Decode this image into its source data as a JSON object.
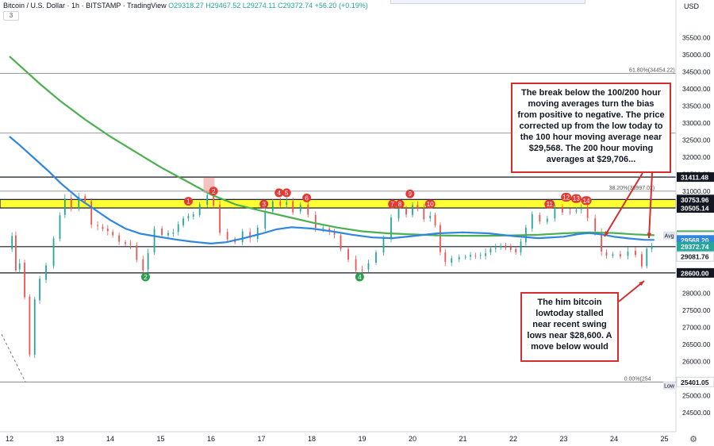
{
  "header": {
    "symbol": "Bitcoin / U.S. Dollar",
    "interval": "1h",
    "exchange": "BITSTAMP",
    "source": "TradingView",
    "ohlc": "O29318.27 H29467.52 L29274.11 C29372.74 +56.20 (+0.19%)",
    "studies_count": "3"
  },
  "currency": "USD",
  "notes": {
    "note1": "The break below the 100/200 hour moving averages turn the bias from positive to negative. The price corrected up from the low today to the 100 hour moving average near $29,568. The 200 hour moving averages at $29,706...",
    "note2": "The him bitcoin lowtoday stalled near recent swing lows near $28,600. A move below would"
  },
  "colors": {
    "candle_up": "#26a69a",
    "candle_down": "#ef5350",
    "ma100": "#2e86de",
    "ma200": "#4caf50",
    "zone": "#ffff33",
    "marker_red": "#e53935",
    "marker_green": "#2e9e4f",
    "line": "#131722"
  },
  "chart_data": {
    "type": "candlestick",
    "ylim": [
      24500,
      36000
    ],
    "xlim": [
      0,
      13.9
    ],
    "x_ticks": [
      {
        "x": 0,
        "label": "12"
      },
      {
        "x": 1,
        "label": "13"
      },
      {
        "x": 2,
        "label": "14"
      },
      {
        "x": 3,
        "label": "15"
      },
      {
        "x": 4,
        "label": "16"
      },
      {
        "x": 5,
        "label": "17"
      },
      {
        "x": 6,
        "label": "18"
      },
      {
        "x": 7,
        "label": "19"
      },
      {
        "x": 8,
        "label": "20"
      },
      {
        "x": 9,
        "label": "21"
      },
      {
        "x": 10,
        "label": "22"
      },
      {
        "x": 11,
        "label": "23"
      },
      {
        "x": 12,
        "label": "24"
      },
      {
        "x": 13,
        "label": "25"
      }
    ],
    "y_ticks": [
      {
        "v": 35500,
        "label": "35500.00"
      },
      {
        "v": 35000,
        "label": "35000.00"
      },
      {
        "v": 34500,
        "label": "34500.00"
      },
      {
        "v": 34000,
        "label": "34000.00"
      },
      {
        "v": 33500,
        "label": "33500.00"
      },
      {
        "v": 33000,
        "label": "33000.00"
      },
      {
        "v": 32500,
        "label": "32500.00"
      },
      {
        "v": 32000,
        "label": "32000.00"
      },
      {
        "v": 31500,
        "label": "31500.00"
      },
      {
        "v": 31000,
        "label": "31000.00"
      },
      {
        "v": 28000,
        "label": "28000.00"
      },
      {
        "v": 27500,
        "label": "27500.00"
      },
      {
        "v": 27000,
        "label": "27000.00"
      },
      {
        "v": 26500,
        "label": "26500.00"
      },
      {
        "v": 26000,
        "label": "26000.00"
      },
      {
        "v": 25000,
        "label": "25000.00"
      },
      {
        "v": 24500,
        "label": "24500.00"
      }
    ],
    "price_labels": [
      {
        "v": 31411.48,
        "label": "31411.48",
        "bg": "#131722",
        "fg": "#ffffff"
      },
      {
        "v": 30753.96,
        "label": "30753.96",
        "bg": "#131722",
        "fg": "#ffffff"
      },
      {
        "v": 30505.14,
        "label": "30505.14",
        "bg": "#131722",
        "fg": "#ffffff"
      },
      {
        "v": 29706.8,
        "label": "29706.80",
        "bg": "#4caf50",
        "fg": "#ffffff"
      },
      {
        "v": 29666.89,
        "label": "29666.89",
        "bg": "#e0e3eb",
        "fg": "#131722"
      },
      {
        "v": 29645.17,
        "label": "29645.17",
        "bg": "#ffffff",
        "fg": "#131722"
      },
      {
        "v": 29568.2,
        "label": "29568.20",
        "bg": "#2e86de",
        "fg": "#ffffff"
      },
      {
        "v": 29372.74,
        "label": "29372.74",
        "bg": "#26a69a",
        "fg": "#ffffff"
      },
      {
        "v": 29081.76,
        "label": "29081.76",
        "bg": "#ffffff",
        "fg": "#131722"
      },
      {
        "v": 28600.0,
        "label": "28600.00",
        "bg": "#131722",
        "fg": "#ffffff"
      },
      {
        "v": 25401.05,
        "label": "25401.05",
        "bg": "#ffffff",
        "fg": "#131722"
      }
    ],
    "side_tags": [
      {
        "v": 29700,
        "label": "Avg"
      },
      {
        "v": 25300,
        "label": "Low"
      }
    ],
    "hlines": [
      {
        "v": 34454.22,
        "label": "61.80%(34454.22)",
        "label_x": 12.3,
        "color": "#777777"
      },
      {
        "v": 32700,
        "label": "",
        "color": "#777777"
      },
      {
        "v": 31411.48,
        "label": "",
        "color": "#131722"
      },
      {
        "v": 30997.02,
        "label": "38.20%(30997.02)",
        "label_x": 11.9,
        "color": "#777777"
      },
      {
        "v": 29370,
        "label": "",
        "color": "#131722"
      },
      {
        "v": 28600,
        "label": "",
        "color": "#131722"
      },
      {
        "v": 25401.05,
        "label": "0.00%(254",
        "label_x": 12.2,
        "color": "#777777"
      }
    ],
    "zone": {
      "from": 30505.14,
      "to": 30753.96
    },
    "ma100": [
      [
        0.0,
        32600
      ],
      [
        0.2,
        32350
      ],
      [
        0.5,
        31950
      ],
      [
        0.8,
        31550
      ],
      [
        1.0,
        31250
      ],
      [
        1.2,
        31000
      ],
      [
        1.4,
        30750
      ],
      [
        1.7,
        30450
      ],
      [
        2.0,
        30150
      ],
      [
        2.3,
        29900
      ],
      [
        2.6,
        29750
      ],
      [
        3.0,
        29650
      ],
      [
        3.3,
        29580
      ],
      [
        3.6,
        29520
      ],
      [
        4.0,
        29460
      ],
      [
        4.3,
        29500
      ],
      [
        4.6,
        29600
      ],
      [
        5.0,
        29750
      ],
      [
        5.3,
        29880
      ],
      [
        5.6,
        29940
      ],
      [
        6.0,
        29900
      ],
      [
        6.4,
        29820
      ],
      [
        6.8,
        29720
      ],
      [
        7.2,
        29640
      ],
      [
        7.6,
        29620
      ],
      [
        8.0,
        29680
      ],
      [
        8.5,
        29760
      ],
      [
        9.0,
        29790
      ],
      [
        9.5,
        29760
      ],
      [
        10.0,
        29680
      ],
      [
        10.5,
        29620
      ],
      [
        11.0,
        29660
      ],
      [
        11.3,
        29740
      ],
      [
        11.5,
        29770
      ],
      [
        11.8,
        29720
      ],
      [
        12.0,
        29660
      ],
      [
        12.3,
        29610
      ],
      [
        12.6,
        29570
      ],
      [
        12.8,
        29568
      ]
    ],
    "ma200": [
      [
        0.0,
        34950
      ],
      [
        0.3,
        34550
      ],
      [
        0.6,
        34150
      ],
      [
        1.0,
        33650
      ],
      [
        1.5,
        33100
      ],
      [
        2.0,
        32600
      ],
      [
        2.5,
        32150
      ],
      [
        3.0,
        31700
      ],
      [
        3.5,
        31300
      ],
      [
        4.0,
        30900
      ],
      [
        4.5,
        30600
      ],
      [
        5.0,
        30420
      ],
      [
        5.5,
        30250
      ],
      [
        6.0,
        30080
      ],
      [
        6.5,
        29930
      ],
      [
        7.0,
        29820
      ],
      [
        7.5,
        29760
      ],
      [
        8.0,
        29730
      ],
      [
        8.5,
        29700
      ],
      [
        9.0,
        29690
      ],
      [
        9.5,
        29690
      ],
      [
        10.0,
        29700
      ],
      [
        10.5,
        29720
      ],
      [
        11.0,
        29760
      ],
      [
        11.5,
        29790
      ],
      [
        12.0,
        29770
      ],
      [
        12.4,
        29730
      ],
      [
        12.8,
        29706
      ]
    ],
    "price_path": [
      [
        0.0,
        29300
      ],
      [
        0.1,
        29700
      ],
      [
        0.15,
        28700
      ],
      [
        0.25,
        28900
      ],
      [
        0.35,
        27900
      ],
      [
        0.45,
        26200
      ],
      [
        0.55,
        27800
      ],
      [
        0.65,
        28400
      ],
      [
        0.8,
        28800
      ],
      [
        0.95,
        29600
      ],
      [
        1.05,
        30300
      ],
      [
        1.15,
        30800
      ],
      [
        1.3,
        30500
      ],
      [
        1.45,
        30850
      ],
      [
        1.55,
        30700
      ],
      [
        1.7,
        30000
      ],
      [
        1.9,
        29900
      ],
      [
        2.1,
        29700
      ],
      [
        2.25,
        29500
      ],
      [
        2.45,
        29400
      ],
      [
        2.6,
        29000
      ],
      [
        2.7,
        28700
      ],
      [
        2.8,
        29200
      ],
      [
        2.95,
        29900
      ],
      [
        3.1,
        29700
      ],
      [
        3.3,
        29800
      ],
      [
        3.5,
        30200
      ],
      [
        3.7,
        30300
      ],
      [
        3.85,
        30600
      ],
      [
        4.0,
        30900
      ],
      [
        4.1,
        30600
      ],
      [
        4.25,
        29800
      ],
      [
        4.4,
        29600
      ],
      [
        4.55,
        29500
      ],
      [
        4.7,
        29800
      ],
      [
        4.85,
        29600
      ],
      [
        5.0,
        29900
      ],
      [
        5.15,
        30400
      ],
      [
        5.3,
        30700
      ],
      [
        5.45,
        30600
      ],
      [
        5.55,
        30700
      ],
      [
        5.7,
        30400
      ],
      [
        5.85,
        30600
      ],
      [
        6.0,
        30300
      ],
      [
        6.15,
        29900
      ],
      [
        6.3,
        29900
      ],
      [
        6.5,
        29700
      ],
      [
        6.65,
        29300
      ],
      [
        6.8,
        29000
      ],
      [
        6.95,
        28700
      ],
      [
        7.05,
        28700
      ],
      [
        7.2,
        28900
      ],
      [
        7.35,
        29200
      ],
      [
        7.5,
        29600
      ],
      [
        7.65,
        30200
      ],
      [
        7.8,
        30500
      ],
      [
        7.95,
        30300
      ],
      [
        8.05,
        30600
      ],
      [
        8.15,
        30500
      ],
      [
        8.3,
        30200
      ],
      [
        8.4,
        30300
      ],
      [
        8.5,
        30000
      ],
      [
        8.6,
        29200
      ],
      [
        8.7,
        28900
      ],
      [
        8.85,
        29000
      ],
      [
        9.0,
        29050
      ],
      [
        9.2,
        29100
      ],
      [
        9.4,
        29100
      ],
      [
        9.6,
        29300
      ],
      [
        9.8,
        29400
      ],
      [
        10.0,
        29300
      ],
      [
        10.1,
        29200
      ],
      [
        10.2,
        29500
      ],
      [
        10.3,
        29900
      ],
      [
        10.45,
        30300
      ],
      [
        10.6,
        30100
      ],
      [
        10.75,
        30200
      ],
      [
        10.9,
        30500
      ],
      [
        11.05,
        30400
      ],
      [
        11.2,
        30400
      ],
      [
        11.4,
        30500
      ],
      [
        11.55,
        30200
      ],
      [
        11.7,
        29800
      ],
      [
        11.8,
        29200
      ],
      [
        11.9,
        29100
      ],
      [
        12.05,
        29150
      ],
      [
        12.2,
        29100
      ],
      [
        12.35,
        29250
      ],
      [
        12.5,
        29150
      ],
      [
        12.6,
        28800
      ],
      [
        12.7,
        29300
      ],
      [
        12.8,
        29372.74
      ]
    ],
    "markers": [
      {
        "x": 3.55,
        "v": 30700,
        "label": "1",
        "color": "red"
      },
      {
        "x": 4.05,
        "v": 31000,
        "label": "2",
        "color": "red"
      },
      {
        "x": 5.05,
        "v": 30620,
        "label": "3",
        "color": "red"
      },
      {
        "x": 5.35,
        "v": 30950,
        "label": "4",
        "color": "red"
      },
      {
        "x": 5.5,
        "v": 30950,
        "label": "5",
        "color": "red"
      },
      {
        "x": 5.9,
        "v": 30800,
        "label": "6",
        "color": "red"
      },
      {
        "x": 7.6,
        "v": 30620,
        "label": "7",
        "color": "red"
      },
      {
        "x": 7.75,
        "v": 30620,
        "label": "8",
        "color": "red"
      },
      {
        "x": 7.95,
        "v": 30920,
        "label": "9",
        "color": "red"
      },
      {
        "x": 8.35,
        "v": 30620,
        "label": "10",
        "color": "red"
      },
      {
        "x": 10.72,
        "v": 30620,
        "label": "11",
        "color": "red"
      },
      {
        "x": 11.05,
        "v": 30820,
        "label": "12",
        "color": "red"
      },
      {
        "x": 11.25,
        "v": 30780,
        "label": "13",
        "color": "red"
      },
      {
        "x": 11.45,
        "v": 30720,
        "label": "14",
        "color": "red"
      },
      {
        "x": 2.7,
        "v": 28480,
        "label": "2",
        "color": "green"
      },
      {
        "x": 6.95,
        "v": 28480,
        "label": "4",
        "color": "green"
      }
    ]
  }
}
